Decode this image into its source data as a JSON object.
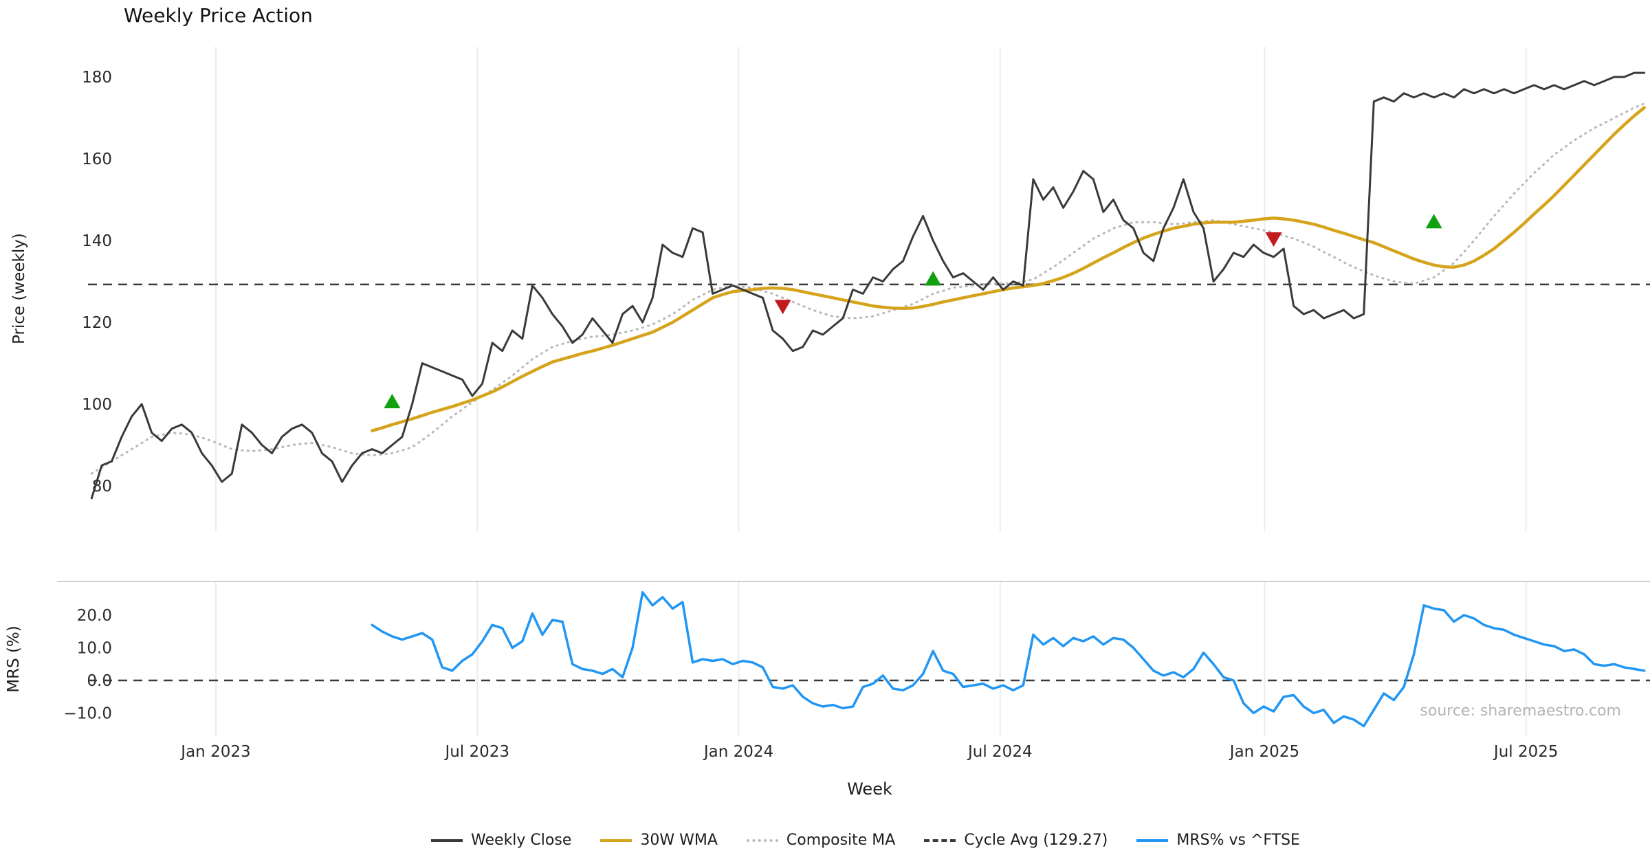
{
  "chart_data": {
    "type": "line",
    "title": "Weekly Price Action",
    "xlabel": "Week",
    "x_unit": "week-index",
    "x_range": [
      0,
      155
    ],
    "x_ticks": [
      {
        "pos": 12.4,
        "label": "Jan 2023"
      },
      {
        "pos": 38.5,
        "label": "Jul 2023"
      },
      {
        "pos": 64.6,
        "label": "Jan 2024"
      },
      {
        "pos": 90.7,
        "label": "Jul 2024"
      },
      {
        "pos": 117.1,
        "label": "Jan 2025"
      },
      {
        "pos": 143.2,
        "label": "Jul 2025"
      }
    ],
    "signal_colors": {
      "buy": "#10a010",
      "sell": "#c11b1b"
    },
    "panels": [
      {
        "ylabel": "Price (weekly)",
        "ylim": [
          69,
          187
        ],
        "yticks": [
          80,
          100,
          120,
          140,
          160,
          180
        ],
        "grid": "vertical",
        "reference_line": {
          "label": "Cycle Avg (129.27)",
          "value": 129.27,
          "style": "dashed",
          "color": "#3a3a3a"
        },
        "series": [
          {
            "name": "Weekly Close",
            "color": "#3a3a3a",
            "style": "solid",
            "width": 3,
            "start_index": 0,
            "values": [
              77,
              85,
              86,
              92,
              97,
              100,
              93,
              91,
              94,
              95,
              93,
              88,
              85,
              81,
              83,
              95,
              93,
              90,
              88,
              92,
              94,
              95,
              93,
              88,
              86,
              81,
              85,
              88,
              89,
              88,
              90,
              92,
              100,
              110,
              109,
              108,
              107,
              106,
              102,
              105,
              115,
              113,
              118,
              116,
              129,
              126,
              122,
              119,
              115,
              117,
              121,
              118,
              115,
              122,
              124,
              120,
              126,
              139,
              137,
              136,
              143,
              142,
              127,
              128,
              129,
              128,
              127,
              126,
              118,
              116,
              113,
              114,
              118,
              117,
              119,
              121,
              128,
              127,
              131,
              130,
              133,
              135,
              141,
              146,
              140,
              135,
              131,
              132,
              130,
              128,
              131,
              128,
              130,
              129,
              155,
              150,
              153,
              148,
              152,
              157,
              155,
              147,
              150,
              145,
              143,
              137,
              135,
              143,
              148,
              155,
              147,
              143,
              130,
              133,
              137,
              136,
              139,
              137,
              136,
              138,
              124,
              122,
              123,
              121,
              122,
              123,
              121,
              122,
              174,
              175,
              174,
              176,
              175,
              176,
              175,
              176,
              175,
              177,
              176,
              177,
              176,
              177,
              176,
              177,
              178,
              177,
              178,
              177,
              178,
              179,
              178,
              179,
              180,
              180,
              181,
              181
            ]
          },
          {
            "name": "30W WMA",
            "color": "#d5a41c",
            "style": "solid",
            "width": 4.5,
            "start_index": 28,
            "values": [
              93.5,
              94.2,
              95,
              95.7,
              96.4,
              97.2,
              98,
              98.7,
              99.4,
              100.2,
              101,
              102,
              103,
              104.2,
              105.5,
              106.8,
              108,
              109.2,
              110.3,
              111,
              111.7,
              112.4,
              113,
              113.7,
              114.4,
              115.2,
              116,
              116.8,
              117.6,
              118.8,
              120,
              121.5,
              123,
              124.5,
              126,
              126.8,
              127.5,
              127.8,
              128,
              128.3,
              128.4,
              128.3,
              128,
              127.5,
              127,
              126.5,
              126,
              125.5,
              125,
              124.5,
              124,
              123.7,
              123.5,
              123.4,
              123.5,
              123.9,
              124.4,
              125,
              125.5,
              126,
              126.5,
              127,
              127.5,
              128,
              128.4,
              128.7,
              129,
              129.5,
              130.2,
              131,
              132,
              133.2,
              134.5,
              135.8,
              137,
              138.3,
              139.5,
              140.6,
              141.5,
              142.3,
              143,
              143.5,
              144,
              144.3,
              144.5,
              144.5,
              144.5,
              144.7,
              145,
              145.3,
              145.5,
              145.3,
              145,
              144.5,
              144,
              143.3,
              142.5,
              141.8,
              141,
              140.2,
              139.5,
              138.5,
              137.5,
              136.5,
              135.5,
              134.7,
              134,
              133.6,
              133.5,
              134,
              135,
              136.4,
              138,
              140,
              142,
              144.2,
              146.5,
              148.7,
              151,
              153.5,
              156,
              158.5,
              161,
              163.5,
              166,
              168.3,
              170.5,
              172.5
            ]
          },
          {
            "name": "Composite MA",
            "color": "#b9b9b9",
            "style": "dotted",
            "width": 3,
            "start_index": 0,
            "values": [
              83,
              84.5,
              86,
              87.5,
              89,
              90.5,
              92,
              92.5,
              93,
              92.8,
              92.5,
              91.8,
              91,
              90,
              89,
              88.7,
              88.5,
              88.7,
              89,
              89.5,
              90,
              90.3,
              90.5,
              90,
              89.5,
              88.7,
              88,
              87.7,
              87.5,
              87.7,
              88,
              88.7,
              89.5,
              91.2,
              93,
              95,
              97,
              98.7,
              100.5,
              102,
              103.5,
              105.2,
              107,
              109,
              111,
              112.5,
              114,
              114.7,
              115.5,
              116,
              116.5,
              116.7,
              117,
              117.5,
              118,
              118.7,
              119.5,
              120.7,
              122,
              123.7,
              125.5,
              126.7,
              128,
              128.5,
              129,
              128.7,
              128.5,
              127.7,
              127,
              126,
              125,
              124,
              123,
              122.2,
              121.5,
              121.2,
              121,
              121.2,
              121.5,
              122.2,
              123,
              123.7,
              124.5,
              125.7,
              127,
              127.7,
              128.5,
              128.7,
              129,
              129.2,
              129.5,
              129.5,
              129.5,
              130,
              130.5,
              132,
              133.5,
              135.2,
              137,
              138.7,
              140.5,
              141.7,
              143,
              143.7,
              144.5,
              144.5,
              144.5,
              144.2,
              144,
              144.2,
              144.5,
              144.7,
              145,
              144.5,
              144,
              143.5,
              143,
              142.5,
              142,
              141.2,
              140.5,
              139.5,
              138.5,
              137.2,
              136,
              134.7,
              133.5,
              132.5,
              131.5,
              130.7,
              130,
              129.7,
              129.5,
              130.2,
              131,
              132.7,
              134.5,
              137.2,
              140,
              143,
              146,
              148.7,
              151.5,
              154,
              156.5,
              158.7,
              161,
              162.7,
              164.5,
              166,
              167.5,
              168.7,
              170,
              171.2,
              172.5,
              173.5
            ]
          }
        ],
        "signals": [
          {
            "index": 30,
            "price": 100.5,
            "type": "buy"
          },
          {
            "index": 69,
            "price": 124,
            "type": "sell"
          },
          {
            "index": 84,
            "price": 130.5,
            "type": "buy"
          },
          {
            "index": 118,
            "price": 140.5,
            "type": "sell"
          },
          {
            "index": 134,
            "price": 144.5,
            "type": "buy"
          }
        ]
      },
      {
        "ylabel": "MRS (%)",
        "ylim": [
          -17,
          30
        ],
        "yticks": [
          20,
          10,
          0,
          -10
        ],
        "ytick_labels": [
          "20.0",
          "10.0",
          "0.0",
          "−10.0"
        ],
        "grid": "vertical",
        "reference_line": {
          "value": 0,
          "style": "dashed",
          "color": "#3a3a3a"
        },
        "source_note": "source: sharemaestro.com",
        "series": [
          {
            "name": "MRS% vs ^FTSE",
            "color": "#2196f3",
            "style": "solid",
            "width": 3.5,
            "start_index": 28,
            "values": [
              17,
              15,
              13.5,
              12.5,
              13.5,
              14.5,
              12.5,
              4,
              3,
              6,
              8,
              12,
              17,
              16,
              10,
              12,
              20.5,
              14,
              18.5,
              18,
              5,
              3.5,
              3,
              2,
              3.5,
              1,
              10,
              27,
              23,
              25.5,
              22,
              24,
              5.5,
              6.5,
              6,
              6.5,
              5,
              6,
              5.5,
              4,
              -2,
              -2.5,
              -1.5,
              -5,
              -7,
              -8,
              -7.5,
              -8.5,
              -8,
              -2,
              -1,
              1.5,
              -2.5,
              -3,
              -1.5,
              2,
              9,
              3,
              2,
              -2,
              -1.5,
              -1,
              -2.5,
              -1.5,
              -3,
              -1.5,
              14,
              11,
              13,
              10.5,
              13,
              12,
              13.5,
              11,
              13,
              12.5,
              10,
              6.5,
              3,
              1.5,
              2.5,
              1,
              3.5,
              8.5,
              5,
              1,
              0,
              -7,
              -10,
              -8,
              -9.5,
              -5,
              -4.5,
              -8,
              -10,
              -9,
              -13,
              -11,
              -12,
              -14,
              -9,
              -4,
              -6,
              -2,
              8,
              23,
              22,
              21.5,
              18,
              20,
              19,
              17,
              16,
              15.5,
              14,
              13,
              12,
              11,
              10.5,
              9,
              9.5,
              8,
              5,
              4.5,
              5,
              4,
              3.5,
              3
            ]
          }
        ]
      }
    ],
    "legend": [
      {
        "label": "Weekly Close",
        "color": "#3a3a3a",
        "style": "solid"
      },
      {
        "label": "30W WMA",
        "color": "#d5a41c",
        "style": "solid"
      },
      {
        "label": "Composite MA",
        "color": "#b9b9b9",
        "style": "dotted"
      },
      {
        "label": "Cycle Avg (129.27)",
        "color": "#3a3a3a",
        "style": "dashed"
      },
      {
        "label": "MRS% vs ^FTSE",
        "color": "#2196f3",
        "style": "solid"
      }
    ]
  }
}
